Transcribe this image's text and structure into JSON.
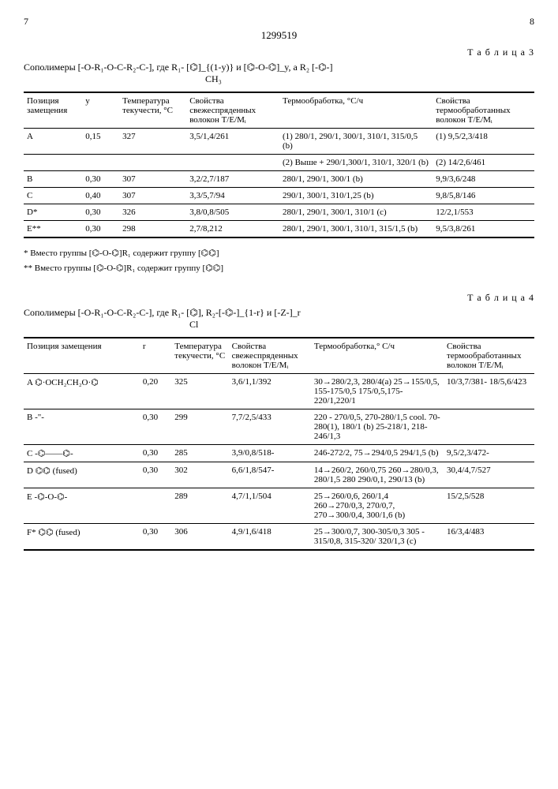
{
  "page_left": "7",
  "page_right": "8",
  "doc_id": "1299519",
  "table3": {
    "label": "Т а б л и ц а 3",
    "formula": "Сополимеры [-O-R₁-O-C-R₂-C-], где R₁- [⌬]_{(1-y)} и [⌬-O-⌬]_y, а R₂ [-⌬-]",
    "formula_sub": "CH₃",
    "headers": [
      "Позиция замещения",
      "y",
      "Температура текучести, °C",
      "Свойства свежеспряденных волокон T/E/Mᵢ",
      "Термообработка, °C/ч",
      "Свойства термообработанных волокон T/E/Mᵢ"
    ],
    "rows": [
      {
        "pos": "A",
        "y": "0,15",
        "temp": "327",
        "fresh": "3,5/1,4/261",
        "thermo": "(1) 280/1, 290/1, 300/1, 310/1, 315/0,5 (b)",
        "treated": "(1) 9,5/2,3/418"
      },
      {
        "pos": "",
        "y": "",
        "temp": "",
        "fresh": "",
        "thermo": "(2) Выше + 290/1,300/1, 310/1, 320/1 (b)",
        "treated": "(2) 14/2,6/461"
      },
      {
        "pos": "B",
        "y": "0,30",
        "temp": "307",
        "fresh": "3,2/2,7/187",
        "thermo": "280/1, 290/1, 300/1 (b)",
        "treated": "9,9/3,6/248"
      },
      {
        "pos": "C",
        "y": "0,40",
        "temp": "307",
        "fresh": "3,3/5,7/94",
        "thermo": "290/1, 300/1, 310/1,25 (b)",
        "treated": "9,8/5,8/146"
      },
      {
        "pos": "D*",
        "y": "0,30",
        "temp": "326",
        "fresh": "3,8/0,8/505",
        "thermo": "280/1, 290/1, 300/1, 310/1 (c)",
        "treated": "12/2,1/553"
      },
      {
        "pos": "E**",
        "y": "0,30",
        "temp": "298",
        "fresh": "2,7/8,212",
        "thermo": "280/1, 290/1, 300/1, 310/1, 315/1,5 (b)",
        "treated": "9,5/3,8/261"
      }
    ],
    "footnote1": "* Вместо группы [⌬-O-⌬]R₁  содержит группу [⌬⌬]",
    "footnote2": "** Вместо группы [⌬-O-⌬]R₁  содержит группу [⌬⌬]"
  },
  "table4": {
    "label": "Т а б л и ц а 4",
    "formula": "Сополимеры [-O-R₁-O-C-R₂-C-], где R₁- [⌬], R₂-[-⌬-]_{1-r} и [-Z-]_r",
    "formula_sub": "Cl",
    "headers": [
      "Позиция замещения",
      "r",
      "Температура текучести, °C",
      "Свойства свежеспряденных волокон T/E/Mᵢ",
      "Термообработка,° C/ч",
      "Свойства термообработанных волокон T/E/Mᵢ"
    ],
    "rows": [
      {
        "pos": "A",
        "struct": "⌬·OCH₂CH₂O·⌬",
        "r": "0,20",
        "temp": "325",
        "fresh": "3,6/1,1/392",
        "thermo": "30→280/2,3, 280/4(a) 25→155/0,5, 155-175/0,5 175/0,5,175-220/1,220/1",
        "treated": "10/3,7/381- 18/5,6/423"
      },
      {
        "pos": "B",
        "struct": "-\"-",
        "r": "0,30",
        "temp": "299",
        "fresh": "7,7/2,5/433",
        "thermo": "220 - 270/0,5, 270-280/1,5 cool. 70-280(1), 180/1 (b) 25-218/1, 218-246/1,3",
        "treated": ""
      },
      {
        "pos": "C",
        "struct": "-⌬——⌬-",
        "r": "0,30",
        "temp": "285",
        "fresh": "3,9/0,8/518-",
        "thermo": "246-272/2, 75→294/0,5 294/1,5 (b)",
        "treated": "9,5/2,3/472-"
      },
      {
        "pos": "D",
        "struct": "⌬⌬ (fused)",
        "r": "0,30",
        "temp": "302",
        "fresh": "6,6/1,8/547-",
        "thermo": "14→260/2, 260/0,75 260→280/0,3, 280/1,5 280 290/0,1, 290/13 (b)",
        "treated": "30,4/4,7/527"
      },
      {
        "pos": "E",
        "struct": "-⌬-O-⌬-",
        "r": "",
        "temp": "289",
        "fresh": "4,7/1,1/504",
        "thermo": "25→260/0,6, 260/1,4 260→270/0,3, 270/0,7, 270→300/0,4, 300/1,6 (b)",
        "treated": "15/2,5/528"
      },
      {
        "pos": "F*",
        "struct": "⌬⌬ (fused)",
        "r": "0,30",
        "temp": "306",
        "fresh": "4,9/1,6/418",
        "thermo": "25→300/0,7, 300-305/0,3 305 - 315/0,8, 315-320/ 320/1,3 (c)",
        "treated": "16/3,4/483"
      }
    ]
  },
  "colors": {
    "text": "#000000",
    "background": "#ffffff",
    "border": "#000000"
  }
}
